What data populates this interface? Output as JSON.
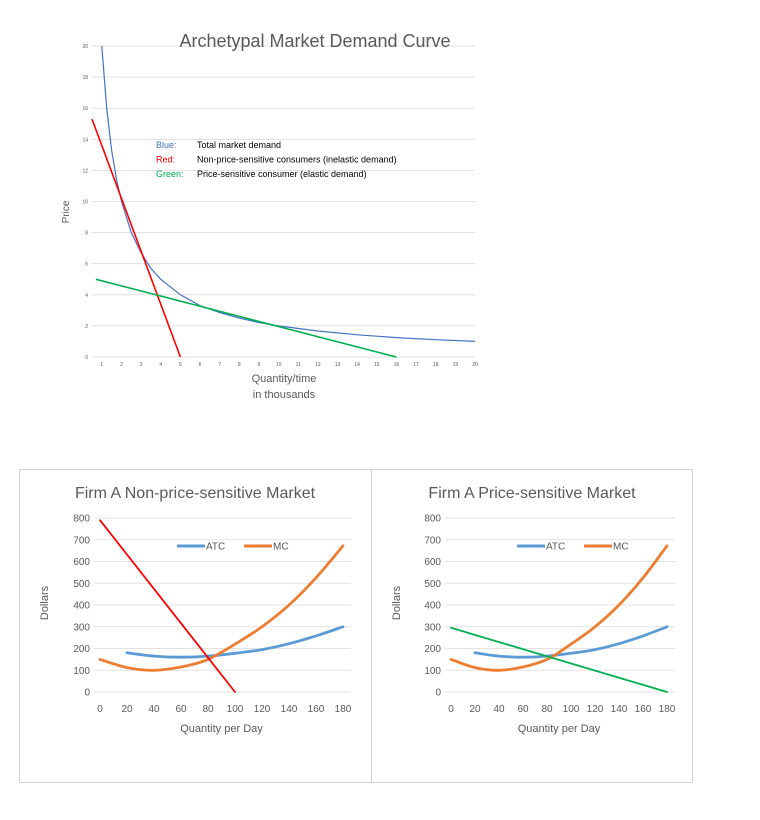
{
  "chart_data": [
    {
      "type": "line",
      "title": "Archetypal Market Demand Curve",
      "xlabel": "Quantity/time\nin thousands",
      "ylabel": "Price",
      "x_ticks": [
        1,
        2,
        3,
        4,
        5,
        6,
        7,
        8,
        9,
        10,
        11,
        12,
        13,
        14,
        15,
        16,
        17,
        18,
        19,
        20
      ],
      "y_ticks": [
        0,
        2,
        4,
        6,
        8,
        10,
        12,
        14,
        16,
        18,
        20
      ],
      "xlim": [
        0.5,
        20
      ],
      "ylim": [
        0,
        20
      ],
      "grid": true,
      "annotations": [
        {
          "label": "Blue:",
          "text": "Total market demand",
          "color": "#4472c4"
        },
        {
          "label": "Red:",
          "text": "Non-price-sensitive consumers (inelastic demand)",
          "color": "#ff0000"
        },
        {
          "label": "Green:",
          "text": "Price-sensitive consumer (elastic demand)",
          "color": "#00b050"
        }
      ],
      "series": [
        {
          "color": "#4472c4",
          "x": [
            1,
            1.25,
            1.5,
            1.75,
            2,
            2.5,
            3,
            3.5,
            4,
            5,
            6,
            7,
            8,
            9,
            10,
            12,
            14,
            16,
            18,
            20
          ],
          "y": [
            20,
            16,
            13.3,
            11.4,
            10,
            8,
            6.7,
            5.7,
            5,
            4,
            3.3,
            2.86,
            2.5,
            2.22,
            2,
            1.67,
            1.43,
            1.25,
            1.11,
            1
          ]
        },
        {
          "color": "#ff0000",
          "x": [
            0.5,
            5
          ],
          "y": [
            15.3,
            0
          ]
        },
        {
          "color": "#00b050",
          "x": [
            0.7,
            16
          ],
          "y": [
            5,
            0
          ]
        }
      ]
    },
    {
      "type": "line",
      "title": "Firm A Non-price-sensitive Market",
      "xlabel": "Quantity per Day",
      "ylabel": "Dollars",
      "x_ticks": [
        0,
        20,
        40,
        60,
        80,
        100,
        120,
        140,
        160,
        180
      ],
      "y_ticks": [
        0,
        100,
        200,
        300,
        400,
        500,
        600,
        700,
        800
      ],
      "xlim": [
        0,
        180
      ],
      "ylim": [
        0,
        800
      ],
      "legend": "top-right",
      "series": [
        {
          "name": "ATC",
          "color": "#5b9bd5",
          "x": [
            20,
            40,
            60,
            80,
            100,
            120,
            140,
            160,
            180
          ],
          "y": [
            180,
            165,
            160,
            165,
            178,
            195,
            222,
            258,
            300
          ]
        },
        {
          "name": "MC",
          "color": "#ed7d31",
          "x": [
            0,
            20,
            40,
            60,
            80,
            100,
            120,
            140,
            160,
            180
          ],
          "y": [
            150,
            112,
            100,
            115,
            150,
            220,
            300,
            400,
            525,
            672
          ]
        },
        {
          "color": "#ff0000",
          "x": [
            0,
            100
          ],
          "y": [
            790,
            0
          ]
        }
      ]
    },
    {
      "type": "line",
      "title": "Firm A Price-sensitive Market",
      "xlabel": "Quantity per Day",
      "ylabel": "Dollars",
      "x_ticks": [
        0,
        20,
        40,
        60,
        80,
        100,
        120,
        140,
        160,
        180
      ],
      "y_ticks": [
        0,
        100,
        200,
        300,
        400,
        500,
        600,
        700,
        800
      ],
      "xlim": [
        0,
        180
      ],
      "ylim": [
        0,
        800
      ],
      "legend": "top-right",
      "series": [
        {
          "name": "ATC",
          "color": "#5b9bd5",
          "x": [
            20,
            40,
            60,
            80,
            100,
            120,
            140,
            160,
            180
          ],
          "y": [
            180,
            165,
            160,
            165,
            178,
            195,
            222,
            258,
            300
          ]
        },
        {
          "name": "MC",
          "color": "#ed7d31",
          "x": [
            0,
            20,
            40,
            60,
            80,
            100,
            120,
            140,
            160,
            180
          ],
          "y": [
            150,
            112,
            100,
            115,
            150,
            220,
            300,
            400,
            525,
            672
          ]
        },
        {
          "color": "#00b050",
          "x": [
            0,
            180
          ],
          "y": [
            295,
            0
          ]
        }
      ]
    }
  ]
}
